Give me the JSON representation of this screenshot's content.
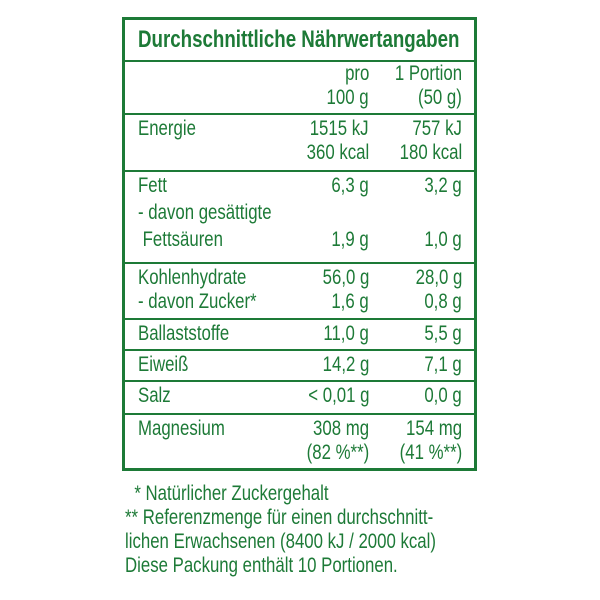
{
  "title": "Durchschnittliche Nährwertangaben",
  "header": {
    "col1": [
      "pro",
      "100 g"
    ],
    "col2": [
      "1 Portion",
      "(50 g)"
    ]
  },
  "rows": [
    {
      "lines": [
        {
          "label": "Energie",
          "v1": "1515 kJ",
          "v2": "757 kJ"
        },
        {
          "label": "",
          "v1": "360 kcal",
          "v2": "180 kcal"
        }
      ]
    },
    {
      "lines": [
        {
          "label": "Fett",
          "v1": "6,3 g",
          "v2": "3,2 g"
        },
        {
          "label": "- davon gesättigte",
          "v1": "",
          "v2": ""
        },
        {
          "label": " Fettsäuren",
          "v1": "1,9 g",
          "v2": "1,0 g"
        }
      ]
    },
    {
      "lines": [
        {
          "label": "Kohlenhydrate",
          "v1": "56,0 g",
          "v2": "28,0 g"
        },
        {
          "label": "- davon Zucker*",
          "v1": "1,6 g",
          "v2": "0,8 g"
        }
      ]
    },
    {
      "lines": [
        {
          "label": "Ballaststoffe",
          "v1": "11,0 g",
          "v2": "5,5 g"
        }
      ]
    },
    {
      "lines": [
        {
          "label": "Eiweiß",
          "v1": "14,2 g",
          "v2": "7,1 g"
        }
      ]
    },
    {
      "lines": [
        {
          "label": "Salz",
          "v1": "< 0,01 g",
          "v2": "0,0 g"
        }
      ]
    },
    {
      "lines": [
        {
          "label": "Magnesium",
          "v1": "308 mg",
          "v2": "154 mg"
        },
        {
          "label": "",
          "v1": "(82 %**)",
          "v2": "(41 %**)"
        }
      ]
    }
  ],
  "footnotes": [
    "  * Natürlicher Zuckergehalt",
    "** Referenzmenge für einen durchschnitt-",
    "lichen Erwachsenen (8400 kJ / 2000 kcal)",
    "Diese Packung enthält 10 Portionen."
  ],
  "colors": {
    "brand_green": "#1d7a37"
  }
}
